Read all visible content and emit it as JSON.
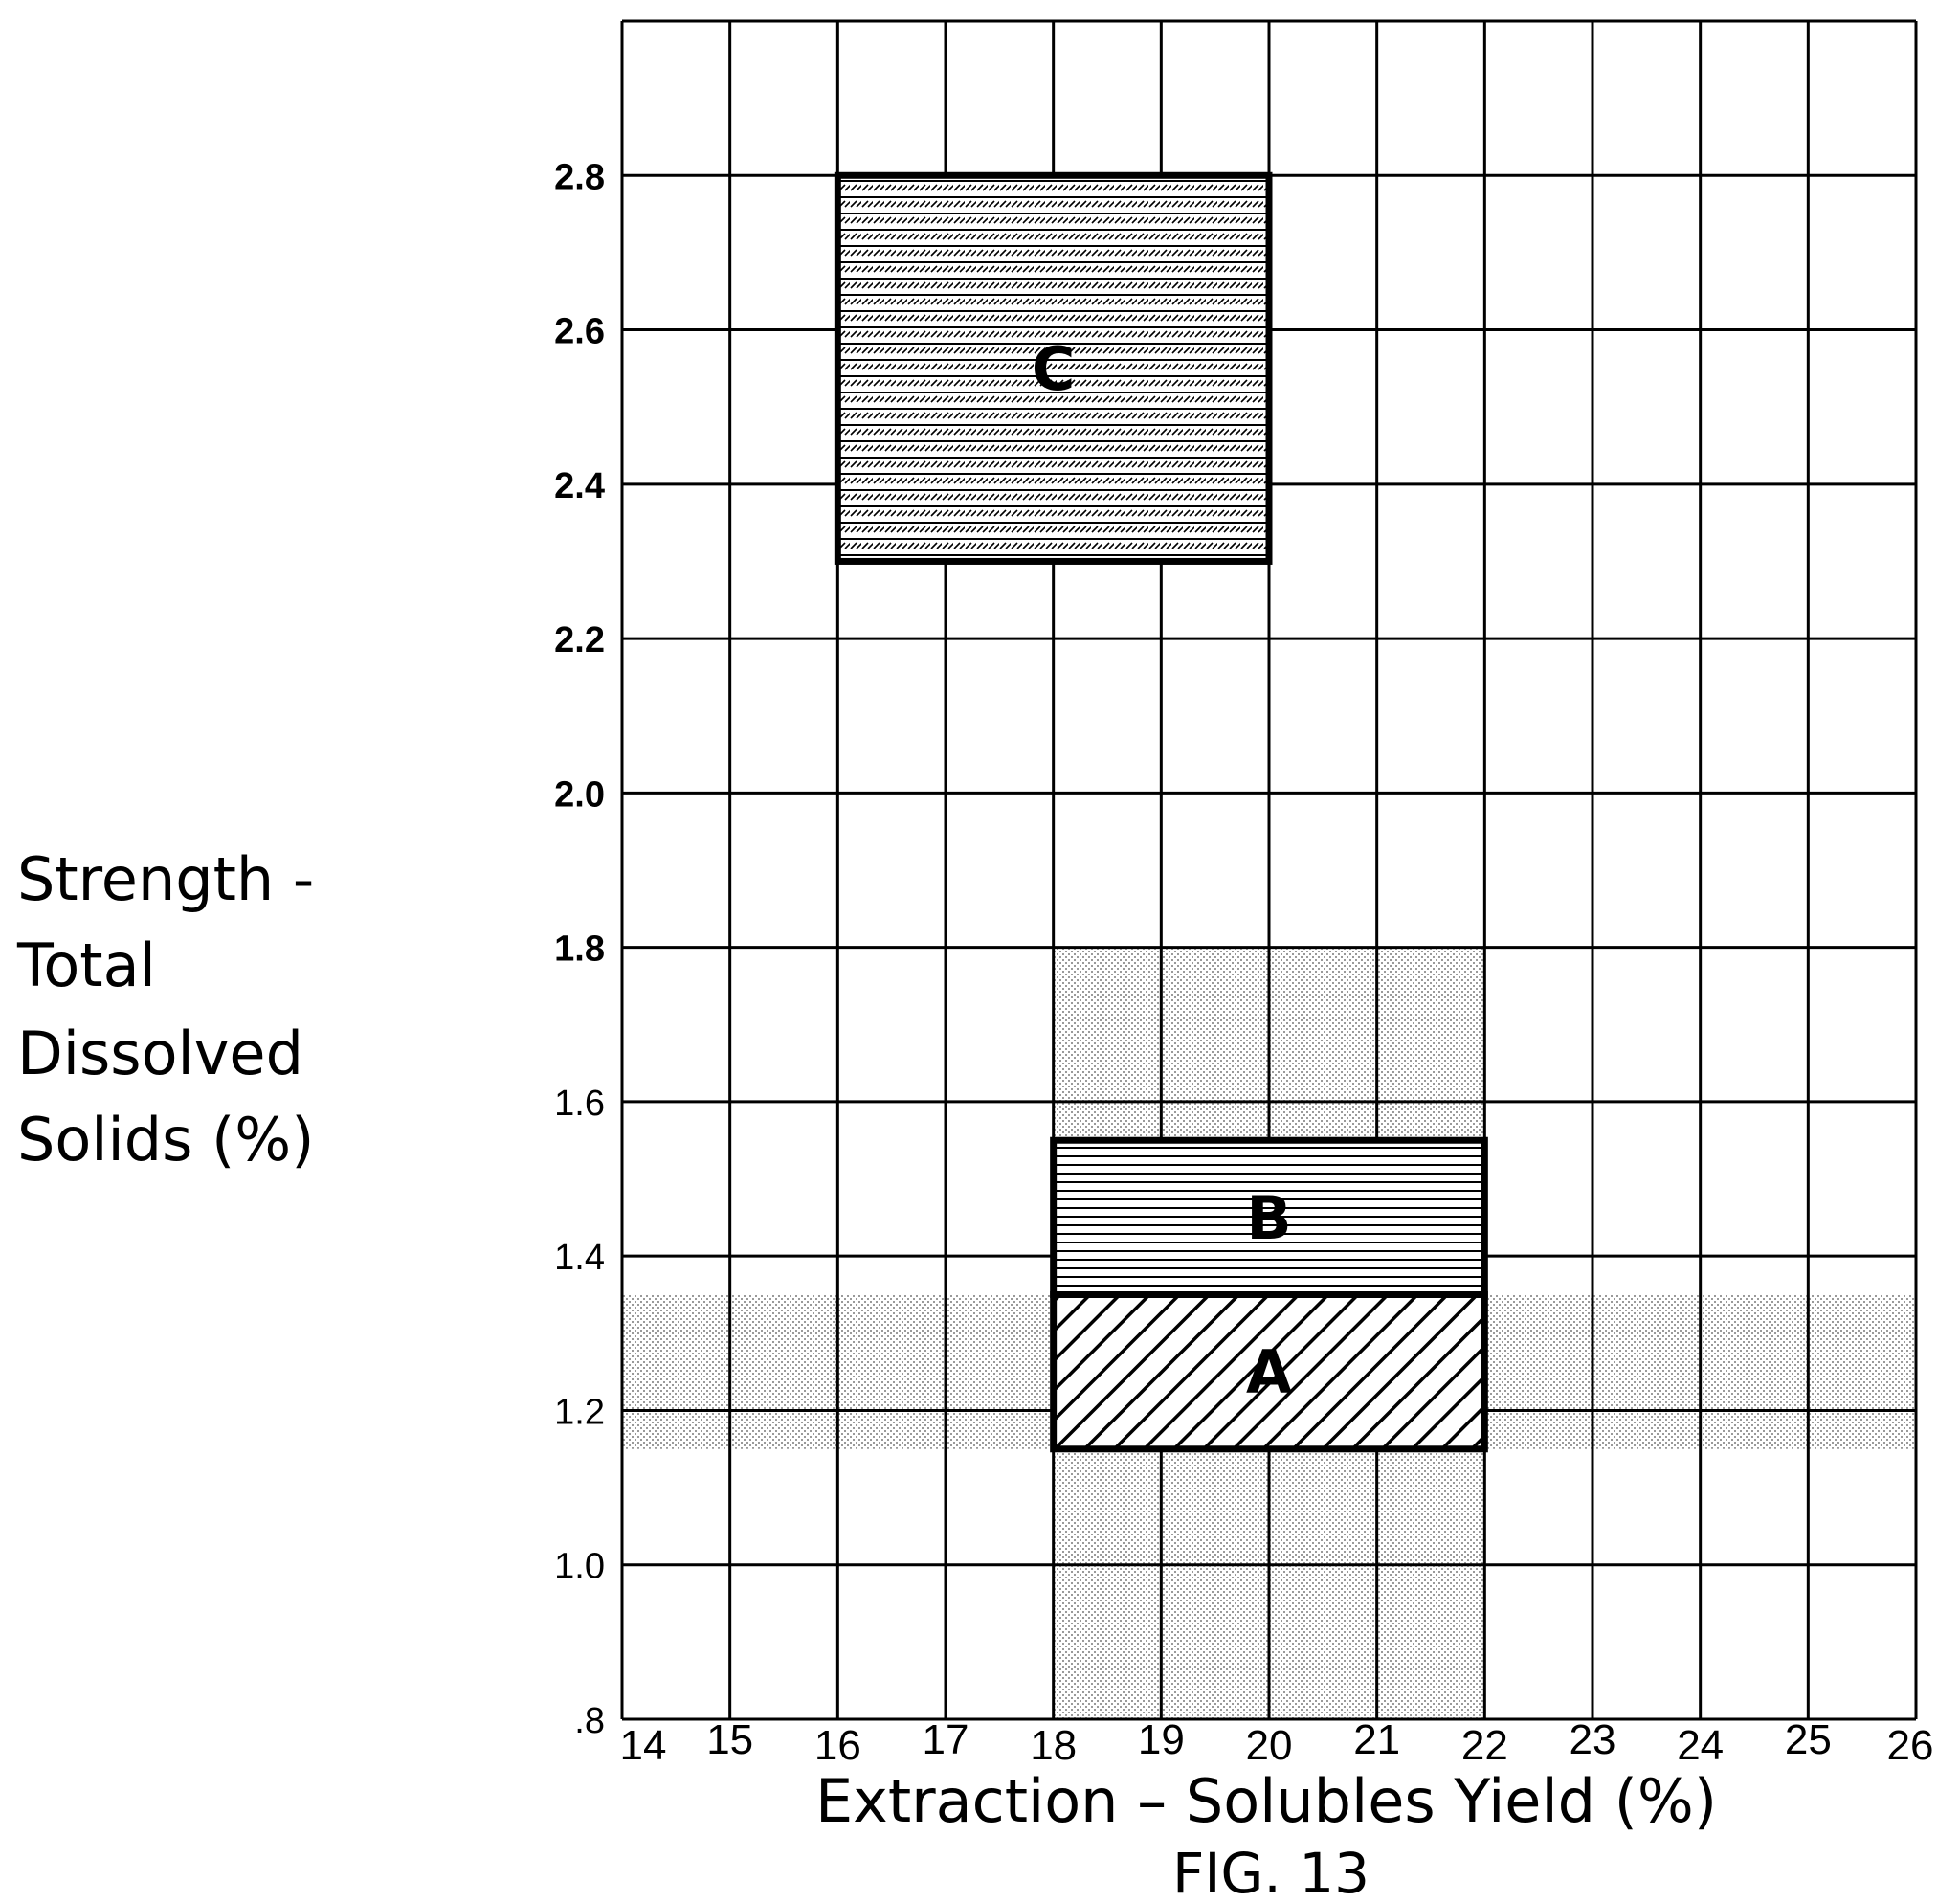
{
  "chart_data": {
    "type": "scatter",
    "title": "",
    "figure_label": "FIG. 13",
    "xlabel": "Extraction – Solubles Yield (%)",
    "ylabel_lines": [
      "Strength -",
      "Total",
      "Dissolved",
      "Solids  (%)"
    ],
    "xlim": [
      14,
      26
    ],
    "ylim": [
      0.8,
      3.0
    ],
    "x_ticks": [
      14,
      15,
      16,
      17,
      18,
      19,
      20,
      21,
      22,
      23,
      24,
      25,
      26
    ],
    "x_tick_labels": [
      "14",
      "15",
      "16",
      "17",
      "18",
      "19",
      "20",
      "21",
      "22",
      "23",
      "24",
      "25",
      "26"
    ],
    "y_ticks": [
      0.8,
      1.0,
      1.2,
      1.4,
      1.6,
      1.8,
      2.0,
      2.2,
      2.4,
      2.6,
      2.8
    ],
    "y_tick_labels": [
      ".8",
      "1.0",
      "1.2",
      "1.4",
      "1.6",
      "1.8",
      "2.0",
      "2.2",
      "2.4",
      "2.6",
      "2.8"
    ],
    "y_tick_bold_from": 1.8,
    "grid": true,
    "shaded_bands": [
      {
        "orientation": "vertical",
        "x": [
          18,
          22
        ],
        "y": [
          0.8,
          1.8
        ],
        "pattern": "dots"
      },
      {
        "orientation": "horizontal",
        "x": [
          14,
          26
        ],
        "y": [
          1.15,
          1.35
        ],
        "pattern": "dots"
      }
    ],
    "regions": [
      {
        "label": "A",
        "x": [
          18,
          22
        ],
        "y": [
          1.15,
          1.35
        ],
        "pattern": "diagonal-hatch"
      },
      {
        "label": "B",
        "x": [
          18,
          22
        ],
        "y": [
          1.35,
          1.55
        ],
        "pattern": "horizontal-lines"
      },
      {
        "label": "C",
        "x": [
          16,
          20
        ],
        "y": [
          2.3,
          2.8
        ],
        "pattern": "dense-hatch"
      }
    ]
  }
}
